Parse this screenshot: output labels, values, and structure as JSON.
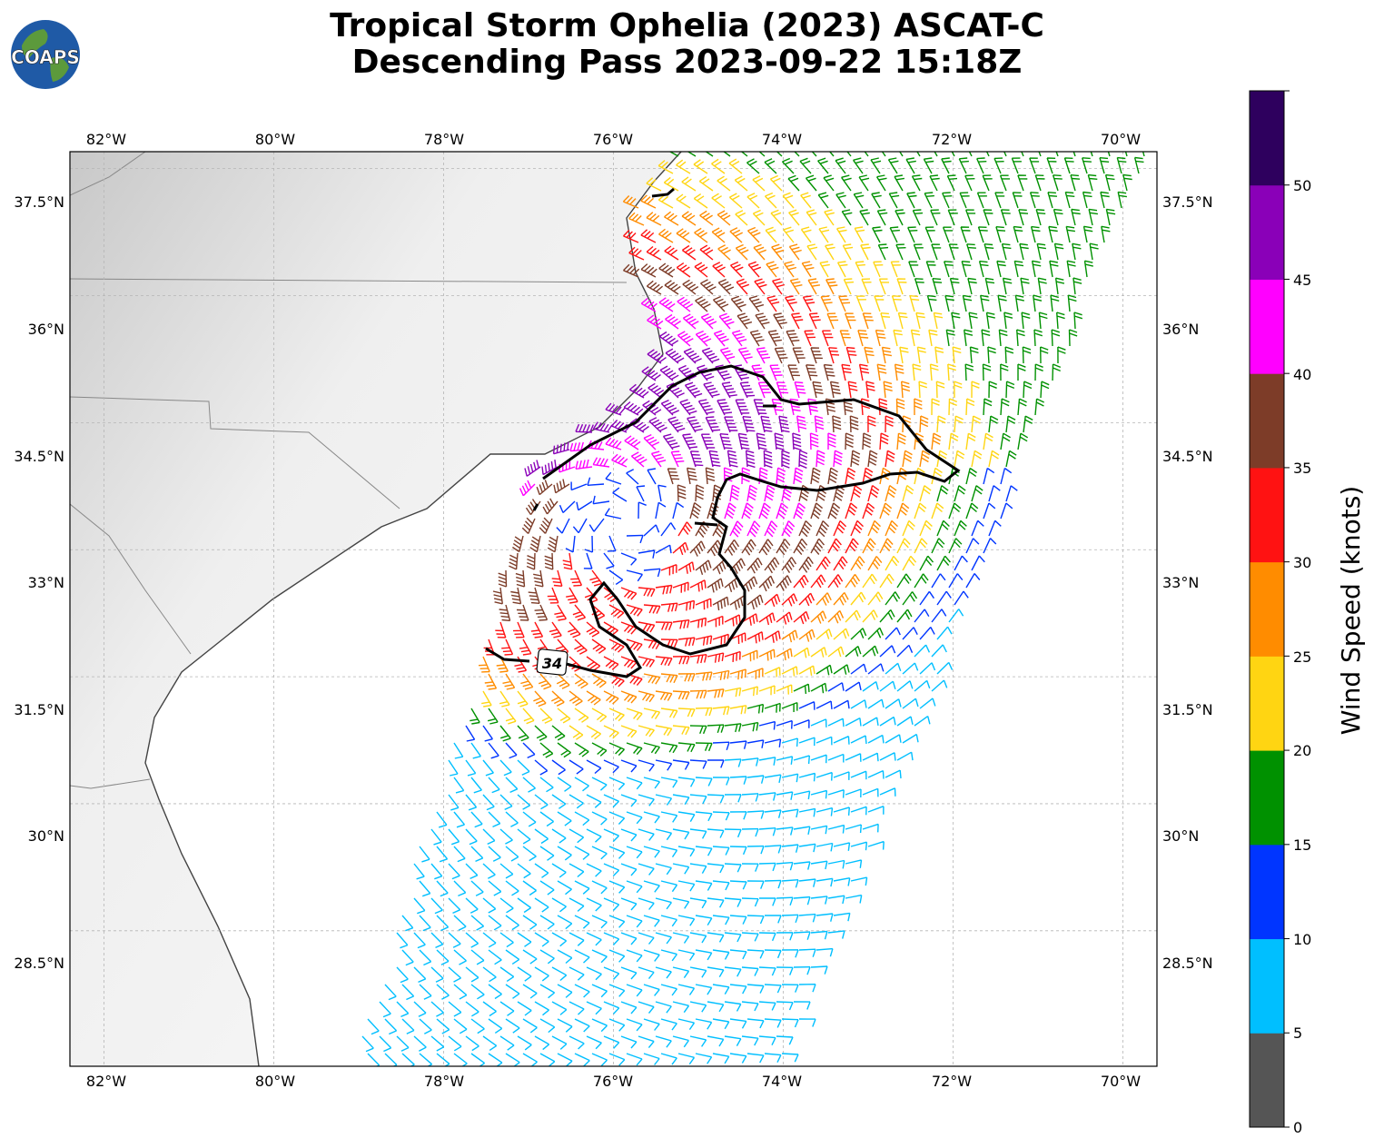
{
  "title": {
    "line1": "Tropical Storm Ophelia (2023) ASCAT-C",
    "line2": "Descending Pass 2023-09-22 15:18Z"
  },
  "logo": {
    "text": "COAPS"
  },
  "map": {
    "lon_labels": [
      "82°W",
      "80°W",
      "78°W",
      "76°W",
      "74°W",
      "72°W",
      "70°W"
    ],
    "lat_labels": [
      "37.5°N",
      "36°N",
      "34.5°N",
      "33°N",
      "31.5°N",
      "30°N",
      "28.5°N"
    ],
    "contour_label": "34",
    "extent": {
      "lon": [
        -82.4,
        -69.6
      ],
      "lat": [
        26.9,
        37.7
      ]
    },
    "storm_center": {
      "lon": -75.9,
      "lat": 33.3
    }
  },
  "colorbar": {
    "label": "Wind Speed (knots)",
    "ticks": [
      "0",
      "5",
      "10",
      "15",
      "20",
      "25",
      "30",
      "35",
      "40",
      "45",
      "50"
    ],
    "colors": [
      "#555555",
      "#00bfff",
      "#0035ff",
      "#009100",
      "#ffd512",
      "#ff8c00",
      "#ff1212",
      "#7d3c28",
      "#ff00ff",
      "#8a00b8",
      "#2e005e"
    ]
  }
}
